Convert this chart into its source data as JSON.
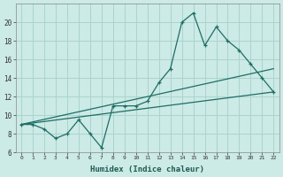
{
  "xlabel": "Humidex (Indice chaleur)",
  "background_color": "#cceae6",
  "grid_color": "#aad4ce",
  "line_color": "#1e6e64",
  "x_values": [
    0,
    1,
    2,
    3,
    4,
    5,
    6,
    7,
    8,
    9,
    10,
    11,
    12,
    13,
    14,
    15,
    16,
    17,
    18,
    19,
    20,
    21,
    22
  ],
  "series1": [
    9.0,
    9.0,
    8.5,
    7.5,
    8.0,
    9.5,
    8.0,
    6.5,
    11.0,
    11.0,
    11.0,
    11.5,
    13.5,
    15.0,
    20.0,
    21.0,
    17.5,
    19.5,
    18.0,
    17.0,
    15.5,
    14.0,
    12.5
  ],
  "series2_x": [
    0,
    22
  ],
  "series2_y": [
    9.0,
    12.5
  ],
  "series3_x": [
    0,
    22
  ],
  "series3_y": [
    9.0,
    15.0
  ],
  "ylim": [
    6,
    22
  ],
  "xlim": [
    -0.5,
    22.5
  ],
  "yticks": [
    6,
    8,
    10,
    12,
    14,
    16,
    18,
    20
  ],
  "xticks": [
    0,
    1,
    2,
    3,
    4,
    5,
    6,
    7,
    8,
    9,
    10,
    11,
    12,
    13,
    14,
    15,
    16,
    17,
    18,
    19,
    20,
    21,
    22
  ]
}
